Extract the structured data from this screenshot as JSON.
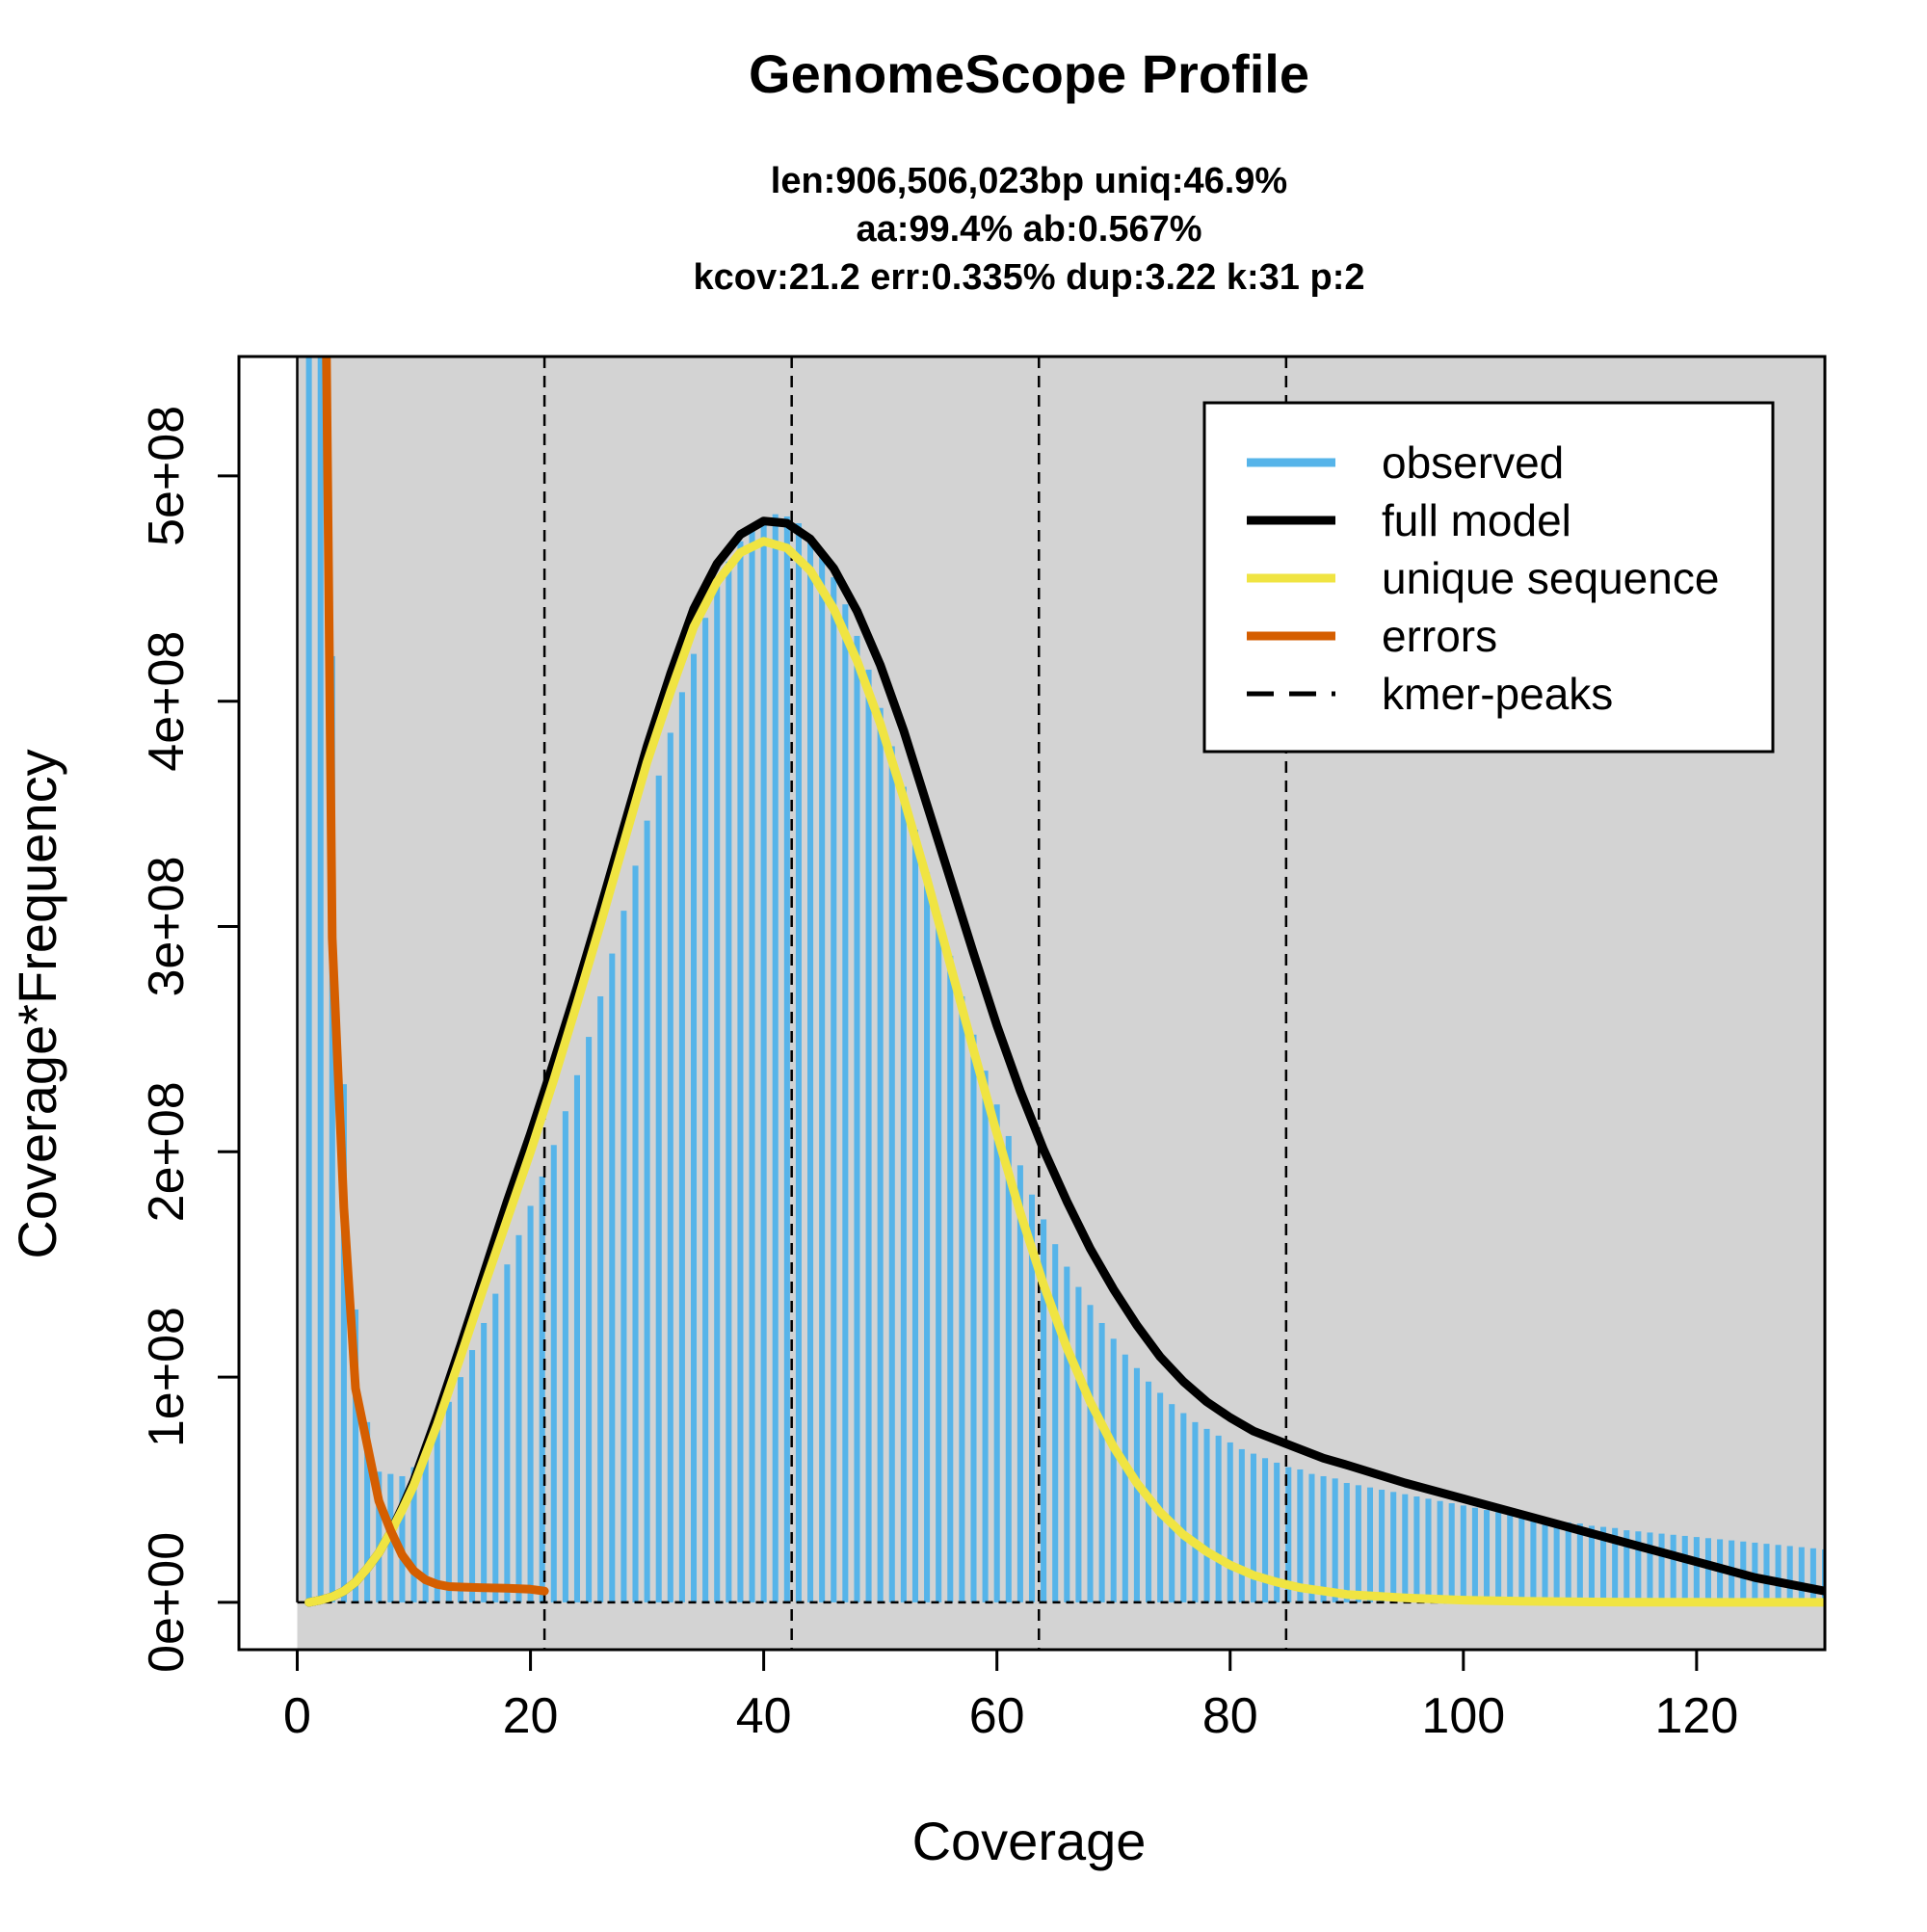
{
  "chart_data": {
    "type": "bar",
    "title": "GenomeScope Profile",
    "subtitle_lines": [
      "len:906,506,023bp uniq:46.9%",
      "aa:99.4% ab:0.567%",
      "kcov:21.2 err:0.335%  dup:3.22  k:31 p:2"
    ],
    "xlabel": "Coverage",
    "ylabel": "Coverage*Frequency",
    "xlim": [
      -5,
      131
    ],
    "ylim": [
      -21000000,
      553000000
    ],
    "x_ticks": [
      0,
      20,
      40,
      60,
      80,
      100,
      120
    ],
    "x_tick_labels": [
      "0",
      "20",
      "40",
      "60",
      "80",
      "100",
      "120"
    ],
    "y_ticks": [
      0,
      100000000,
      200000000,
      300000000,
      400000000,
      500000000
    ],
    "y_tick_labels": [
      "0e+00",
      "1e+08",
      "2e+08",
      "3e+08",
      "4e+08",
      "5e+08"
    ],
    "background_color": "#d3d3d3",
    "kmer_peaks": [
      21.2,
      42.4,
      63.6,
      84.8
    ],
    "observed": {
      "name": "observed",
      "color": "#56b4e9",
      "x": [
        1,
        2,
        3,
        4,
        5,
        6,
        7,
        8,
        9,
        10,
        11,
        12,
        13,
        14,
        15,
        16,
        17,
        18,
        19,
        20,
        21,
        22,
        23,
        24,
        25,
        26,
        27,
        28,
        29,
        30,
        31,
        32,
        33,
        34,
        35,
        36,
        37,
        38,
        39,
        40,
        41,
        42,
        43,
        44,
        45,
        46,
        47,
        48,
        49,
        50,
        51,
        52,
        53,
        54,
        55,
        56,
        57,
        58,
        59,
        60,
        61,
        62,
        63,
        64,
        65,
        66,
        67,
        68,
        69,
        70,
        71,
        72,
        73,
        74,
        75,
        76,
        77,
        78,
        79,
        80,
        81,
        82,
        83,
        84,
        85,
        86,
        87,
        88,
        89,
        90,
        91,
        92,
        93,
        94,
        95,
        96,
        97,
        98,
        99,
        100,
        101,
        102,
        103,
        104,
        105,
        106,
        107,
        108,
        109,
        110,
        111,
        112,
        113,
        114,
        115,
        116,
        117,
        118,
        119,
        120,
        121,
        122,
        123,
        124,
        125,
        126,
        127,
        128,
        129,
        130,
        131
      ],
      "y": [
        600000000,
        600000000,
        420000000,
        230000000,
        130000000,
        80000000,
        58000000,
        57000000,
        56000000,
        60000000,
        68000000,
        78000000,
        89000000,
        100000000,
        112000000,
        124000000,
        137000000,
        150000000,
        163000000,
        176000000,
        189000000,
        203000000,
        218000000,
        234000000,
        251000000,
        269000000,
        288000000,
        307000000,
        327000000,
        347000000,
        367000000,
        386000000,
        404000000,
        421000000,
        437000000,
        451000000,
        462000000,
        471000000,
        477000000,
        481000000,
        483000000,
        482000000,
        479000000,
        473000000,
        465000000,
        455000000,
        443000000,
        429000000,
        414000000,
        397000000,
        380000000,
        362000000,
        343000000,
        324000000,
        305000000,
        287000000,
        269000000,
        252000000,
        236000000,
        221000000,
        207000000,
        194000000,
        181000000,
        170000000,
        159000000,
        149000000,
        140000000,
        132000000,
        124000000,
        117000000,
        110000000,
        104000000,
        98000000,
        93000000,
        88000000,
        84000000,
        80000000,
        77000000,
        74000000,
        71000000,
        68000000,
        66000000,
        64000000,
        62000000,
        60000000,
        59000000,
        57000000,
        56000000,
        55000000,
        53000000,
        52000000,
        51000000,
        50000000,
        49000000,
        48000000,
        47000000,
        46000000,
        45000000,
        44000000,
        43000000,
        42000000,
        41000000,
        40000000,
        39000000,
        38000000,
        37500000,
        37000000,
        36000000,
        35500000,
        35000000,
        34000000,
        33500000,
        33000000,
        32000000,
        31500000,
        31000000,
        30500000,
        30000000,
        29500000,
        29000000,
        28500000,
        28000000,
        27500000,
        27000000,
        26500000,
        26000000,
        25500000,
        25000000,
        24500000,
        24000000,
        23500000
      ]
    },
    "series": [
      {
        "name": "full model",
        "color": "#000000",
        "x": [
          1,
          2,
          3,
          4,
          5,
          6,
          7,
          8,
          9,
          10,
          12,
          14,
          16,
          18,
          20,
          22,
          24,
          26,
          28,
          30,
          32,
          34,
          36,
          38,
          40,
          42,
          44,
          46,
          48,
          50,
          52,
          54,
          56,
          58,
          60,
          62,
          64,
          66,
          68,
          70,
          72,
          74,
          76,
          78,
          80,
          82,
          84,
          86,
          88,
          90,
          95,
          100,
          105,
          110,
          115,
          120,
          125,
          131
        ],
        "y": [
          0,
          1000000,
          2500000,
          5000000,
          9000000,
          15000000,
          22000000,
          31000000,
          42000000,
          54000000,
          83000000,
          114000000,
          146000000,
          178000000,
          208000000,
          240000000,
          273000000,
          308000000,
          344000000,
          380000000,
          412000000,
          441000000,
          461000000,
          474000000,
          480000000,
          479000000,
          472000000,
          459000000,
          440000000,
          416000000,
          387000000,
          354000000,
          321000000,
          288000000,
          256000000,
          227000000,
          201000000,
          178000000,
          157000000,
          139000000,
          123000000,
          109000000,
          98000000,
          89000000,
          82000000,
          76000000,
          72000000,
          68000000,
          64000000,
          61000000,
          53000000,
          46000000,
          39000000,
          32000000,
          25000000,
          18000000,
          11000000,
          5000000
        ]
      },
      {
        "name": "unique sequence",
        "color": "#f0e442",
        "x": [
          1,
          2,
          3,
          4,
          5,
          6,
          7,
          8,
          9,
          10,
          12,
          14,
          16,
          18,
          20,
          22,
          24,
          26,
          28,
          30,
          32,
          34,
          36,
          38,
          40,
          42,
          44,
          46,
          48,
          50,
          52,
          54,
          56,
          58,
          60,
          62,
          64,
          66,
          68,
          70,
          72,
          74,
          76,
          78,
          80,
          82,
          84,
          86,
          88,
          90,
          95,
          100,
          105,
          110,
          115,
          120,
          125,
          131
        ],
        "y": [
          0,
          1000000,
          2500000,
          5000000,
          9000000,
          15000000,
          22000000,
          31000000,
          41000000,
          52000000,
          79000000,
          109000000,
          140000000,
          170000000,
          200000000,
          232000000,
          266000000,
          301000000,
          337000000,
          373000000,
          404000000,
          433000000,
          453000000,
          466000000,
          471000000,
          468000000,
          458000000,
          441000000,
          418000000,
          390000000,
          357000000,
          321000000,
          283000000,
          245000000,
          208000000,
          173000000,
          141000000,
          113000000,
          89000000,
          69000000,
          53000000,
          40000000,
          30000000,
          22500000,
          16500000,
          12000000,
          9000000,
          6500000,
          5000000,
          3500000,
          2000000,
          1000000,
          500000,
          200000,
          100000,
          50000,
          20000,
          0
        ]
      },
      {
        "name": "errors",
        "color": "#d55e00",
        "x": [
          1,
          2,
          2.5,
          3,
          4,
          5,
          6,
          7,
          8,
          9,
          10,
          11,
          12,
          13,
          14,
          16,
          18,
          20,
          21.2
        ],
        "y": [
          600000000,
          600000000,
          553000000,
          295000000,
          175000000,
          95000000,
          70000000,
          45000000,
          32000000,
          21000000,
          14000000,
          10000000,
          8000000,
          7000000,
          6800000,
          6500000,
          6300000,
          5800000,
          5000000
        ]
      }
    ],
    "legend": {
      "position": "top-right",
      "entries": [
        "observed",
        "full model",
        "unique sequence",
        "errors",
        "kmer-peaks"
      ]
    }
  }
}
